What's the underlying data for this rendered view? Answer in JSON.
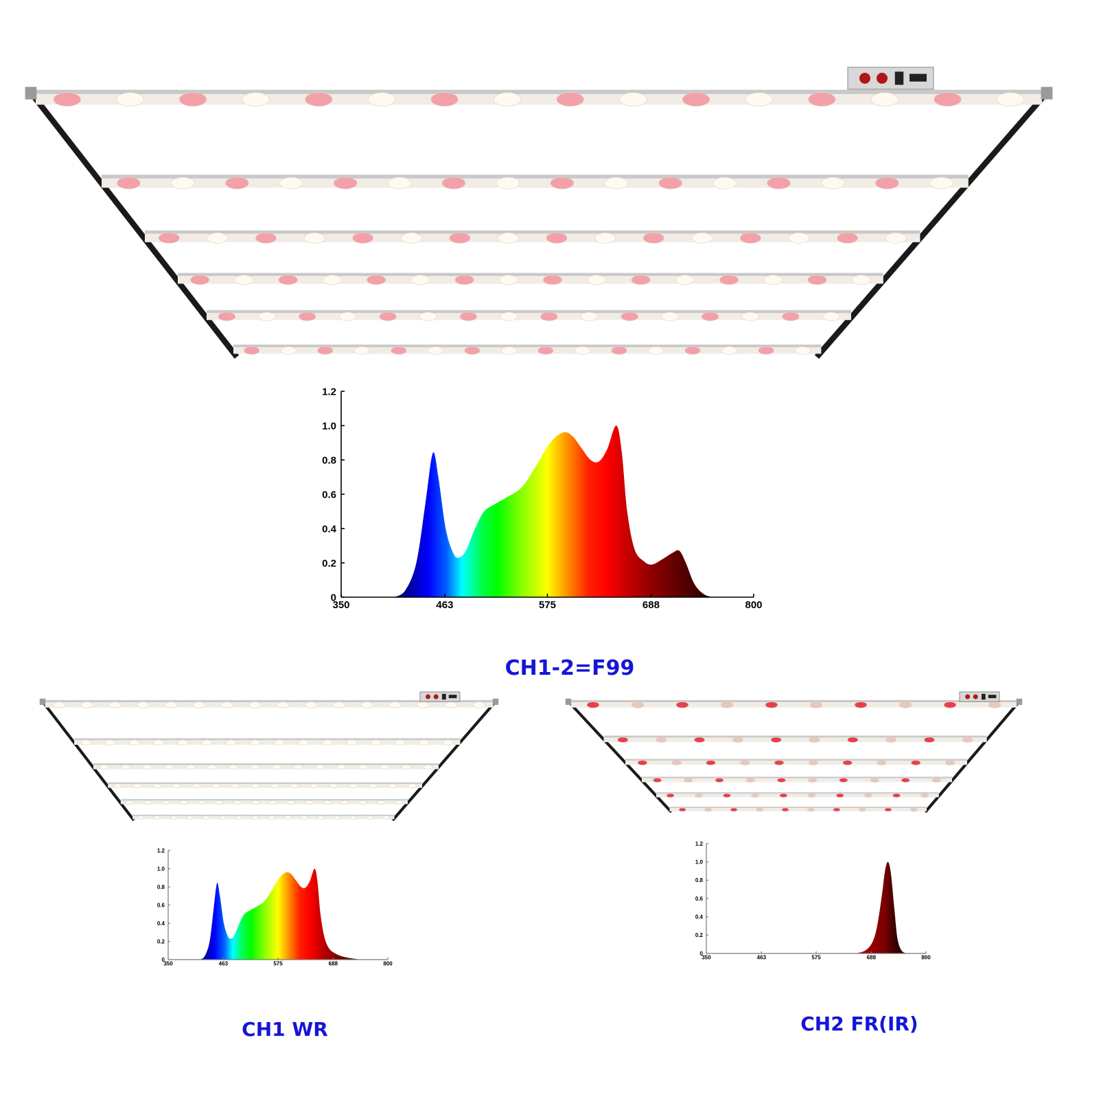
{
  "colors": {
    "title": "#1515d8",
    "axis": "#000000",
    "frame": "#c9c9c9",
    "rail": "#1a1a1a",
    "led_white": "#fffaf0",
    "led_pink": "#f4a0a8",
    "led_red": "#e8404a"
  },
  "fixtures": [
    {
      "name": "main-fixture",
      "led_colors": "pink-white",
      "has_control_box": true
    },
    {
      "name": "ch1-fixture",
      "led_colors": "white",
      "has_control_box": true
    },
    {
      "name": "ch2-fixture",
      "led_colors": "red",
      "has_control_box": true
    }
  ],
  "chart_data": [
    {
      "type": "area",
      "title": "CH1-2=F99",
      "xlabel": "",
      "ylabel": "",
      "xlim": [
        350,
        800
      ],
      "ylim": [
        0,
        1.2
      ],
      "x_ticks": [
        "350",
        "463",
        "575",
        "688",
        "800"
      ],
      "y_ticks": [
        "0",
        "0.2",
        "0.4",
        "0.6",
        "0.8",
        "1.0",
        "1.2"
      ],
      "fill": "visible-spectrum-gradient",
      "grid": false,
      "x": [
        408,
        420,
        432,
        442,
        450,
        456,
        464,
        472,
        478,
        486,
        496,
        506,
        517,
        530,
        547,
        562,
        578,
        592,
        602,
        612,
        622,
        631,
        640,
        650,
        656,
        662,
        670,
        680,
        689,
        700,
        712,
        719,
        726,
        735,
        745,
        756,
        770
      ],
      "y": [
        0,
        0.04,
        0.2,
        0.55,
        0.84,
        0.7,
        0.4,
        0.26,
        0.23,
        0.27,
        0.4,
        0.5,
        0.54,
        0.58,
        0.64,
        0.76,
        0.9,
        0.96,
        0.94,
        0.87,
        0.8,
        0.79,
        0.86,
        1.0,
        0.85,
        0.5,
        0.28,
        0.21,
        0.19,
        0.22,
        0.26,
        0.27,
        0.2,
        0.08,
        0.02,
        0,
        0
      ]
    },
    {
      "type": "area",
      "title": "CH1 WR",
      "xlabel": "",
      "ylabel": "",
      "xlim": [
        350,
        800
      ],
      "ylim": [
        0,
        1.2
      ],
      "x_ticks": [
        "350",
        "463",
        "575",
        "688",
        "800"
      ],
      "y_ticks": [
        "0",
        "0.2",
        "0.4",
        "0.6",
        "0.8",
        "1.0",
        "1.2"
      ],
      "fill": "visible-spectrum-gradient",
      "grid": false,
      "x": [
        415,
        425,
        435,
        443,
        450,
        456,
        464,
        472,
        478,
        486,
        496,
        506,
        517,
        530,
        547,
        562,
        578,
        592,
        602,
        612,
        622,
        631,
        640,
        650,
        656,
        662,
        670,
        680,
        695,
        710,
        730,
        750,
        770
      ],
      "y": [
        0,
        0.04,
        0.2,
        0.55,
        0.84,
        0.7,
        0.4,
        0.26,
        0.23,
        0.27,
        0.4,
        0.5,
        0.54,
        0.58,
        0.64,
        0.76,
        0.9,
        0.96,
        0.94,
        0.87,
        0.8,
        0.79,
        0.86,
        1.0,
        0.85,
        0.5,
        0.25,
        0.12,
        0.06,
        0.03,
        0.01,
        0,
        0
      ]
    },
    {
      "type": "area",
      "title": "CH2 FR(IR)",
      "xlabel": "",
      "ylabel": "",
      "xlim": [
        350,
        800
      ],
      "ylim": [
        0,
        1.2
      ],
      "x_ticks": [
        "350",
        "463",
        "575",
        "688",
        "800"
      ],
      "y_ticks": [
        "0",
        "0.2",
        "0.4",
        "0.6",
        "0.8",
        "1.0",
        "1.2"
      ],
      "fill": "dark-red-gradient",
      "grid": false,
      "x": [
        655,
        675,
        690,
        700,
        710,
        716,
        722,
        728,
        735,
        742,
        752,
        765
      ],
      "y": [
        0,
        0.03,
        0.12,
        0.3,
        0.65,
        0.9,
        1.0,
        0.88,
        0.5,
        0.15,
        0.02,
        0
      ]
    }
  ]
}
